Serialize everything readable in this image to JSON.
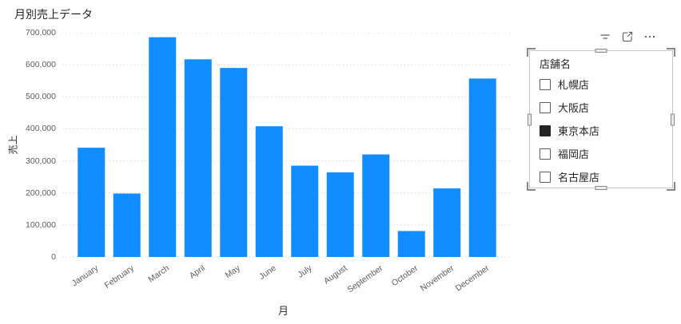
{
  "chart_data": {
    "type": "bar",
    "title": "月別売上データ",
    "xlabel": "月",
    "ylabel": "売上",
    "categories": [
      "January",
      "February",
      "March",
      "April",
      "May",
      "June",
      "July",
      "August",
      "September",
      "October",
      "November",
      "December"
    ],
    "values": [
      341000,
      198000,
      686000,
      617000,
      590000,
      408000,
      285000,
      264000,
      320000,
      81000,
      214000,
      557000
    ],
    "ylim": [
      0,
      700000
    ],
    "ytick_step": 100000,
    "y_tick_labels": [
      "0",
      "100,000",
      "200,000",
      "300,000",
      "400,000",
      "500,000",
      "600,000",
      "700,000"
    ],
    "grid": true,
    "bar_color": "#118DFF",
    "legend_position": "none"
  },
  "slicer": {
    "header": "店舗名",
    "items": [
      {
        "label": "札幌店",
        "checked": false
      },
      {
        "label": "大阪店",
        "checked": false
      },
      {
        "label": "東京本店",
        "checked": true
      },
      {
        "label": "福岡店",
        "checked": false
      },
      {
        "label": "名古屋店",
        "checked": false
      }
    ]
  },
  "visual_header": {
    "icons": [
      {
        "name": "clear-selections"
      },
      {
        "name": "focus-mode"
      },
      {
        "name": "more-options"
      }
    ]
  },
  "colors": {
    "bar": "#118DFF",
    "title_text": "#252423",
    "axis_text": "#605E5C",
    "gridline": "#DCDCDC",
    "frame": "#C8C6C4",
    "handle": "#8A8886",
    "checkbox_checked": "#252423"
  }
}
